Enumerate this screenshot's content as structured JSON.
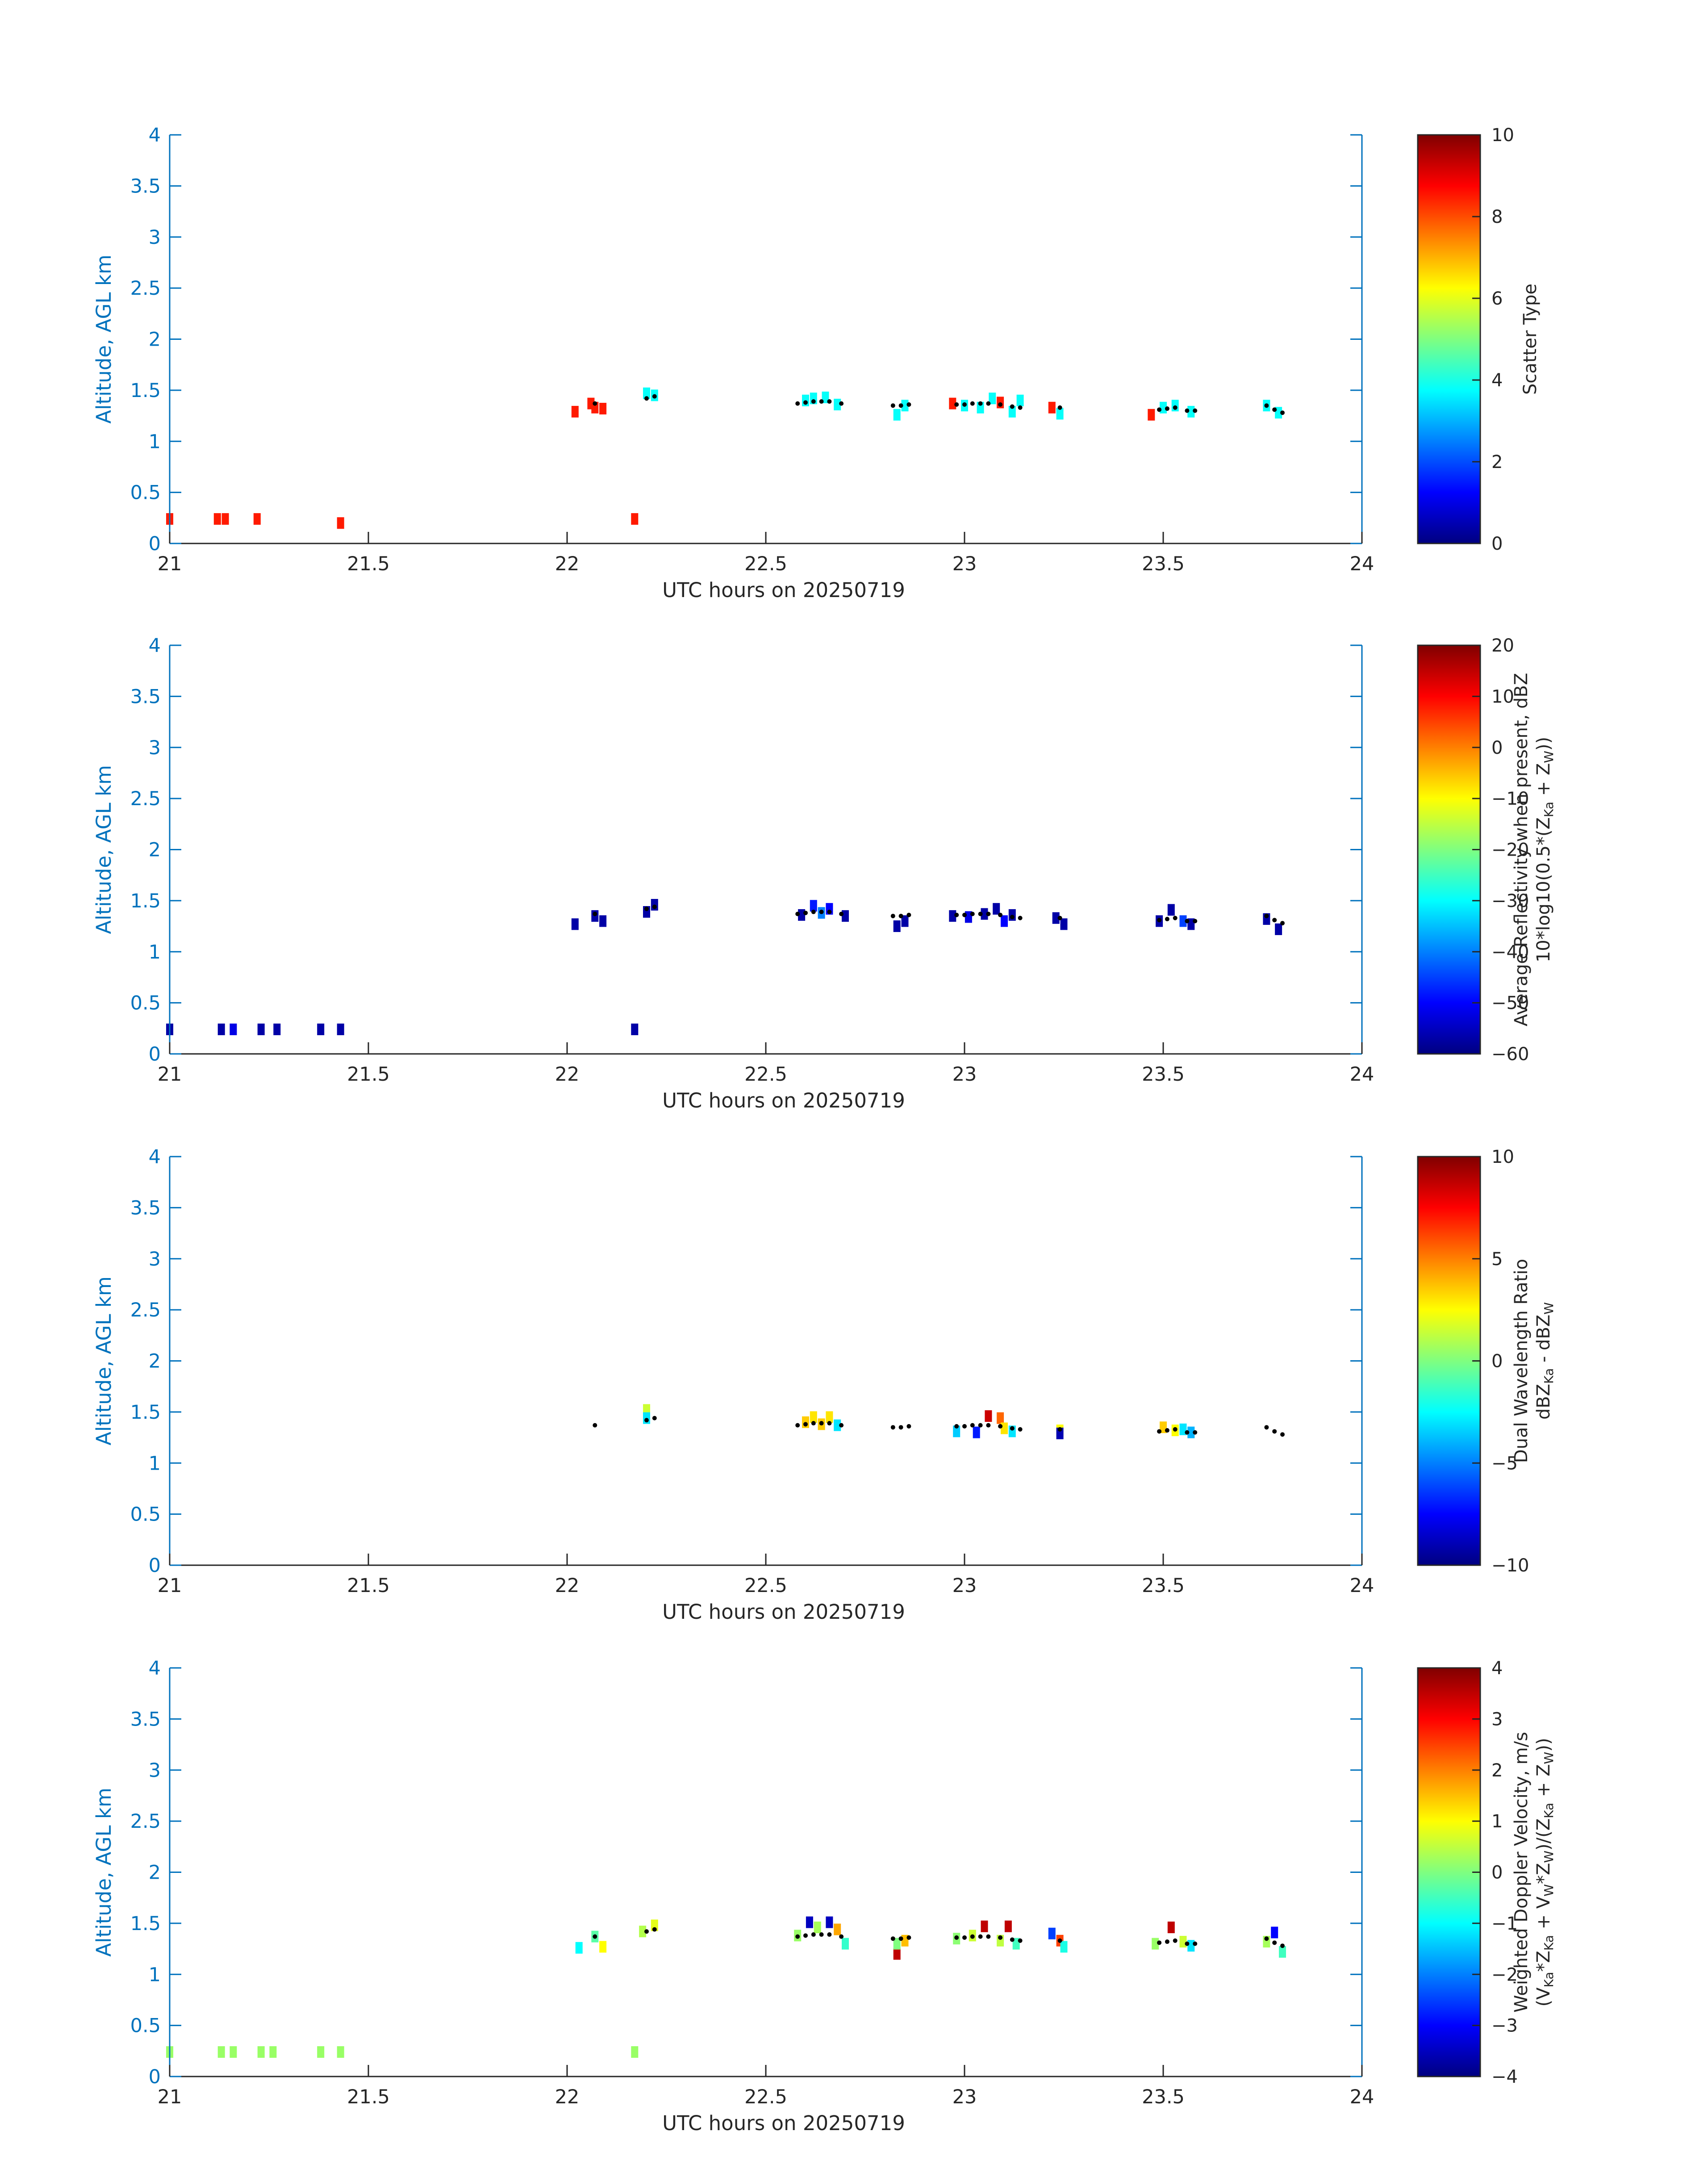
{
  "figure": {
    "xlabel": "UTC hours on 20250719",
    "ylabel": "Altitude, AGL km",
    "axis_color": "#0072BD"
  },
  "chart_data": [
    {
      "type": "heatmap",
      "xlabel": "UTC hours on 20250719",
      "ylabel": "Altitude, AGL km",
      "xlim": [
        21,
        24
      ],
      "ylim": [
        0,
        4
      ],
      "xticks": [
        21,
        21.5,
        22,
        22.5,
        23,
        23.5,
        24
      ],
      "yticks": [
        0,
        0.5,
        1,
        1.5,
        2,
        2.5,
        3,
        3.5,
        4
      ],
      "colorbar": {
        "label_lines": [
          "Scatter Type"
        ],
        "min": 0,
        "max": 10,
        "ticks": [
          0,
          2,
          4,
          6,
          8,
          10
        ],
        "colormap": "jet"
      },
      "cells": [
        [
          21.0,
          0.24,
          8.5
        ],
        [
          21.12,
          0.24,
          8.5
        ],
        [
          21.14,
          0.24,
          8.5
        ],
        [
          21.22,
          0.24,
          8.5
        ],
        [
          21.43,
          0.2,
          8.5
        ],
        [
          22.17,
          0.24,
          8.5
        ],
        [
          22.02,
          1.29,
          8.5
        ],
        [
          22.06,
          1.37,
          8.5
        ],
        [
          22.07,
          1.33,
          8.5
        ],
        [
          22.09,
          1.32,
          8.5
        ],
        [
          22.2,
          1.47,
          3.8
        ],
        [
          22.22,
          1.45,
          3.8
        ],
        [
          22.6,
          1.4,
          3.8
        ],
        [
          22.62,
          1.42,
          3.8
        ],
        [
          22.65,
          1.43,
          3.8
        ],
        [
          22.68,
          1.36,
          3.8
        ],
        [
          22.83,
          1.26,
          3.8
        ],
        [
          22.85,
          1.35,
          3.8
        ],
        [
          22.97,
          1.37,
          8.5
        ],
        [
          23.0,
          1.35,
          3.8
        ],
        [
          23.04,
          1.33,
          3.8
        ],
        [
          23.07,
          1.42,
          3.8
        ],
        [
          23.09,
          1.38,
          8.5
        ],
        [
          23.12,
          1.29,
          3.8
        ],
        [
          23.14,
          1.4,
          3.8
        ],
        [
          23.22,
          1.33,
          8.5
        ],
        [
          23.24,
          1.27,
          3.8
        ],
        [
          23.47,
          1.26,
          8.5
        ],
        [
          23.5,
          1.33,
          3.8
        ],
        [
          23.53,
          1.35,
          3.8
        ],
        [
          23.57,
          1.29,
          3.8
        ],
        [
          23.76,
          1.35,
          3.8
        ],
        [
          23.79,
          1.28,
          3.8
        ]
      ],
      "cloud_base_points": [
        [
          22.07,
          1.37
        ],
        [
          22.2,
          1.42
        ],
        [
          22.22,
          1.44
        ],
        [
          22.58,
          1.37
        ],
        [
          22.6,
          1.38
        ],
        [
          22.62,
          1.39
        ],
        [
          22.64,
          1.39
        ],
        [
          22.66,
          1.39
        ],
        [
          22.69,
          1.37
        ],
        [
          22.82,
          1.35
        ],
        [
          22.84,
          1.35
        ],
        [
          22.86,
          1.36
        ],
        [
          22.98,
          1.36
        ],
        [
          23.0,
          1.36
        ],
        [
          23.02,
          1.37
        ],
        [
          23.04,
          1.37
        ],
        [
          23.06,
          1.37
        ],
        [
          23.09,
          1.36
        ],
        [
          23.12,
          1.34
        ],
        [
          23.14,
          1.33
        ],
        [
          23.24,
          1.33
        ],
        [
          23.49,
          1.31
        ],
        [
          23.51,
          1.32
        ],
        [
          23.53,
          1.33
        ],
        [
          23.56,
          1.3
        ],
        [
          23.58,
          1.3
        ],
        [
          23.76,
          1.35
        ],
        [
          23.78,
          1.31
        ],
        [
          23.8,
          1.28
        ]
      ]
    },
    {
      "type": "heatmap",
      "xlabel": "UTC hours on 20250719",
      "ylabel": "Altitude, AGL km",
      "xlim": [
        21,
        24
      ],
      "ylim": [
        0,
        4
      ],
      "xticks": [
        21,
        21.5,
        22,
        22.5,
        23,
        23.5,
        24
      ],
      "yticks": [
        0,
        0.5,
        1,
        1.5,
        2,
        2.5,
        3,
        3.5,
        4
      ],
      "colorbar": {
        "label_lines": [
          "Average Reflectivity when present, dBZ",
          "10*log10(0.5*(Z",
          "Ka",
          " + Z",
          "W",
          "))"
        ],
        "min": -60,
        "max": 20,
        "ticks": [
          -60,
          -50,
          -40,
          -30,
          -20,
          -10,
          0,
          10,
          20
        ],
        "colormap": "jet"
      },
      "cells": [
        [
          21.0,
          0.24,
          -57
        ],
        [
          21.13,
          0.24,
          -57
        ],
        [
          21.16,
          0.24,
          -52
        ],
        [
          21.23,
          0.24,
          -57
        ],
        [
          21.27,
          0.24,
          -57
        ],
        [
          21.38,
          0.24,
          -57
        ],
        [
          21.43,
          0.24,
          -57
        ],
        [
          22.17,
          0.24,
          -57
        ],
        [
          22.02,
          1.27,
          -57
        ],
        [
          22.07,
          1.35,
          -57
        ],
        [
          22.09,
          1.3,
          -57
        ],
        [
          22.2,
          1.39,
          -57
        ],
        [
          22.22,
          1.46,
          -57
        ],
        [
          22.59,
          1.36,
          -57
        ],
        [
          22.62,
          1.45,
          -48
        ],
        [
          22.64,
          1.38,
          -40
        ],
        [
          22.66,
          1.42,
          -50
        ],
        [
          22.7,
          1.35,
          -57
        ],
        [
          22.83,
          1.25,
          -57
        ],
        [
          22.85,
          1.3,
          -57
        ],
        [
          22.97,
          1.35,
          -57
        ],
        [
          23.01,
          1.34,
          -52
        ],
        [
          23.05,
          1.37,
          -57
        ],
        [
          23.08,
          1.42,
          -57
        ],
        [
          23.1,
          1.3,
          -50
        ],
        [
          23.12,
          1.36,
          -57
        ],
        [
          23.23,
          1.33,
          -57
        ],
        [
          23.25,
          1.27,
          -57
        ],
        [
          23.49,
          1.3,
          -57
        ],
        [
          23.52,
          1.41,
          -57
        ],
        [
          23.55,
          1.3,
          -45
        ],
        [
          23.57,
          1.27,
          -57
        ],
        [
          23.76,
          1.32,
          -57
        ],
        [
          23.79,
          1.22,
          -57
        ]
      ],
      "cloud_base_points": [
        [
          22.07,
          1.37
        ],
        [
          22.2,
          1.42
        ],
        [
          22.22,
          1.44
        ],
        [
          22.58,
          1.37
        ],
        [
          22.6,
          1.38
        ],
        [
          22.62,
          1.39
        ],
        [
          22.64,
          1.39
        ],
        [
          22.66,
          1.39
        ],
        [
          22.69,
          1.37
        ],
        [
          22.82,
          1.35
        ],
        [
          22.84,
          1.35
        ],
        [
          22.86,
          1.36
        ],
        [
          22.98,
          1.36
        ],
        [
          23.0,
          1.36
        ],
        [
          23.02,
          1.37
        ],
        [
          23.04,
          1.37
        ],
        [
          23.06,
          1.37
        ],
        [
          23.09,
          1.36
        ],
        [
          23.12,
          1.34
        ],
        [
          23.14,
          1.33
        ],
        [
          23.24,
          1.33
        ],
        [
          23.49,
          1.31
        ],
        [
          23.51,
          1.32
        ],
        [
          23.53,
          1.33
        ],
        [
          23.56,
          1.3
        ],
        [
          23.58,
          1.3
        ],
        [
          23.76,
          1.35
        ],
        [
          23.78,
          1.31
        ],
        [
          23.8,
          1.28
        ]
      ]
    },
    {
      "type": "heatmap",
      "xlabel": "UTC hours on 20250719",
      "ylabel": "Altitude, AGL km",
      "xlim": [
        21,
        24
      ],
      "ylim": [
        0,
        4
      ],
      "xticks": [
        21,
        21.5,
        22,
        22.5,
        23,
        23.5,
        24
      ],
      "yticks": [
        0,
        0.5,
        1,
        1.5,
        2,
        2.5,
        3,
        3.5,
        4
      ],
      "colorbar": {
        "label_lines": [
          "Dual Wavelength Ratio",
          "dBZ",
          "Ka",
          " - dBZ",
          "W"
        ],
        "min": -10,
        "max": 10,
        "ticks": [
          -10,
          -5,
          0,
          5,
          10
        ],
        "colormap": "jet"
      },
      "cells": [
        [
          22.2,
          1.52,
          1.5
        ],
        [
          22.2,
          1.44,
          -3
        ],
        [
          22.6,
          1.4,
          3.5
        ],
        [
          22.62,
          1.45,
          3
        ],
        [
          22.64,
          1.38,
          3.5
        ],
        [
          22.66,
          1.45,
          3
        ],
        [
          22.68,
          1.37,
          -3
        ],
        [
          22.98,
          1.31,
          -3.5
        ],
        [
          23.03,
          1.3,
          -7
        ],
        [
          23.06,
          1.46,
          8.5
        ],
        [
          23.09,
          1.44,
          5.5
        ],
        [
          23.1,
          1.34,
          3
        ],
        [
          23.12,
          1.31,
          -3
        ],
        [
          23.24,
          1.32,
          2.5
        ],
        [
          23.24,
          1.29,
          -9
        ],
        [
          23.5,
          1.35,
          3.5
        ],
        [
          23.53,
          1.32,
          2.5
        ],
        [
          23.55,
          1.33,
          -3
        ],
        [
          23.57,
          1.3,
          -4
        ]
      ],
      "cloud_base_points": [
        [
          22.07,
          1.37
        ],
        [
          22.2,
          1.42
        ],
        [
          22.22,
          1.44
        ],
        [
          22.58,
          1.37
        ],
        [
          22.6,
          1.38
        ],
        [
          22.62,
          1.39
        ],
        [
          22.64,
          1.39
        ],
        [
          22.66,
          1.39
        ],
        [
          22.69,
          1.37
        ],
        [
          22.82,
          1.35
        ],
        [
          22.84,
          1.35
        ],
        [
          22.86,
          1.36
        ],
        [
          22.98,
          1.36
        ],
        [
          23.0,
          1.36
        ],
        [
          23.02,
          1.37
        ],
        [
          23.04,
          1.37
        ],
        [
          23.06,
          1.37
        ],
        [
          23.09,
          1.36
        ],
        [
          23.12,
          1.34
        ],
        [
          23.14,
          1.33
        ],
        [
          23.24,
          1.33
        ],
        [
          23.49,
          1.31
        ],
        [
          23.51,
          1.32
        ],
        [
          23.53,
          1.33
        ],
        [
          23.56,
          1.3
        ],
        [
          23.58,
          1.3
        ],
        [
          23.76,
          1.35
        ],
        [
          23.78,
          1.31
        ],
        [
          23.8,
          1.28
        ]
      ]
    },
    {
      "type": "heatmap",
      "xlabel": "UTC hours on 20250719",
      "ylabel": "Altitude, AGL km",
      "xlim": [
        21,
        24
      ],
      "ylim": [
        0,
        4
      ],
      "xticks": [
        21,
        21.5,
        22,
        22.5,
        23,
        23.5,
        24
      ],
      "yticks": [
        0,
        0.5,
        1,
        1.5,
        2,
        2.5,
        3,
        3.5,
        4
      ],
      "colorbar": {
        "label_lines": [
          "Weighted Doppler Velocity, m/s",
          "(V",
          "Ka",
          "*Z",
          "Ka",
          " + V",
          "W",
          "*Z",
          "W",
          ")/(Z",
          "Ka",
          " + Z",
          "W",
          "))"
        ],
        "min": -4,
        "max": 4,
        "ticks": [
          -4,
          -3,
          -2,
          -1,
          0,
          1,
          2,
          3,
          4
        ],
        "colormap": "jet"
      },
      "cells": [
        [
          21.0,
          0.24,
          0.2
        ],
        [
          21.13,
          0.24,
          0.2
        ],
        [
          21.16,
          0.24,
          0.2
        ],
        [
          21.23,
          0.24,
          0.2
        ],
        [
          21.26,
          0.24,
          0.2
        ],
        [
          21.38,
          0.24,
          0.2
        ],
        [
          21.43,
          0.24,
          0.2
        ],
        [
          22.17,
          0.24,
          0.2
        ],
        [
          22.03,
          1.26,
          -1
        ],
        [
          22.07,
          1.37,
          -0.3
        ],
        [
          22.09,
          1.27,
          1
        ],
        [
          22.19,
          1.42,
          0.4
        ],
        [
          22.22,
          1.48,
          0.8
        ],
        [
          22.58,
          1.38,
          0.2
        ],
        [
          22.61,
          1.51,
          -3.5
        ],
        [
          22.63,
          1.46,
          0.3
        ],
        [
          22.66,
          1.51,
          -3.5
        ],
        [
          22.68,
          1.44,
          1.7
        ],
        [
          22.7,
          1.3,
          -0.6
        ],
        [
          22.83,
          1.2,
          3.5
        ],
        [
          22.83,
          1.3,
          0
        ],
        [
          22.85,
          1.33,
          1.5
        ],
        [
          22.98,
          1.35,
          0.1
        ],
        [
          23.02,
          1.38,
          0.6
        ],
        [
          23.05,
          1.47,
          3.5
        ],
        [
          23.09,
          1.33,
          0.5
        ],
        [
          23.11,
          1.47,
          3.5
        ],
        [
          23.13,
          1.3,
          -0.5
        ],
        [
          23.22,
          1.4,
          -2.5
        ],
        [
          23.24,
          1.33,
          2.5
        ],
        [
          23.25,
          1.27,
          -0.8
        ],
        [
          23.48,
          1.3,
          0.2
        ],
        [
          23.52,
          1.46,
          3.5
        ],
        [
          23.55,
          1.32,
          0.6
        ],
        [
          23.57,
          1.28,
          -1.2
        ],
        [
          23.76,
          1.32,
          0.3
        ],
        [
          23.78,
          1.41,
          -3
        ],
        [
          23.8,
          1.22,
          -0.5
        ]
      ],
      "cloud_base_points": [
        [
          22.07,
          1.37
        ],
        [
          22.2,
          1.42
        ],
        [
          22.22,
          1.44
        ],
        [
          22.58,
          1.37
        ],
        [
          22.6,
          1.38
        ],
        [
          22.62,
          1.39
        ],
        [
          22.64,
          1.39
        ],
        [
          22.66,
          1.39
        ],
        [
          22.69,
          1.37
        ],
        [
          22.82,
          1.35
        ],
        [
          22.84,
          1.35
        ],
        [
          22.86,
          1.36
        ],
        [
          22.98,
          1.36
        ],
        [
          23.0,
          1.36
        ],
        [
          23.02,
          1.37
        ],
        [
          23.04,
          1.37
        ],
        [
          23.06,
          1.37
        ],
        [
          23.09,
          1.36
        ],
        [
          23.12,
          1.34
        ],
        [
          23.14,
          1.33
        ],
        [
          23.24,
          1.33
        ],
        [
          23.49,
          1.31
        ],
        [
          23.51,
          1.32
        ],
        [
          23.53,
          1.33
        ],
        [
          23.56,
          1.3
        ],
        [
          23.58,
          1.3
        ],
        [
          23.76,
          1.35
        ],
        [
          23.78,
          1.31
        ],
        [
          23.8,
          1.28
        ]
      ]
    }
  ]
}
